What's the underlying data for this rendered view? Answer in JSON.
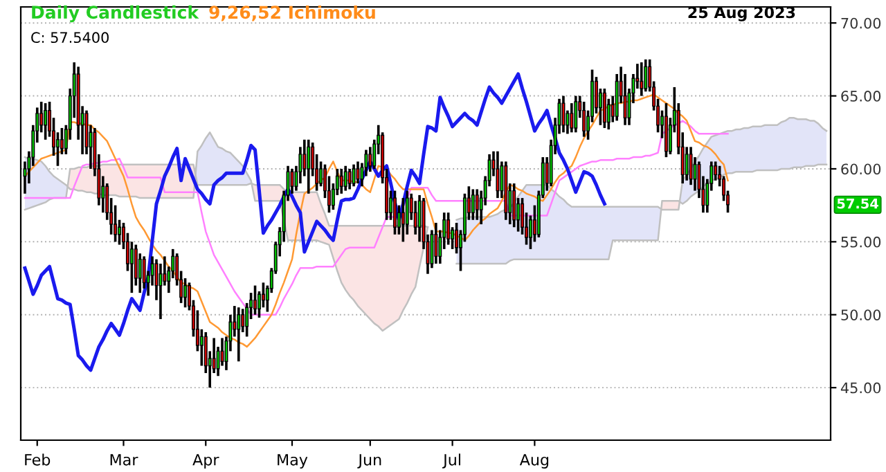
{
  "chart_data": {
    "type": "candlestick",
    "title": "Daily Candlestick",
    "subtitle": "9,26,52 Ichimoku",
    "annotations": [
      "C: 57.5400",
      "25 Aug 2023",
      "57.54"
    ],
    "categories": [
      null,
      null,
      null,
      "Feb",
      null,
      null,
      null,
      null,
      null,
      null,
      null,
      null,
      null,
      null,
      null,
      null,
      null,
      null,
      null,
      null,
      null,
      null,
      null,
      null,
      "Mar",
      null,
      null,
      null,
      null,
      null,
      null,
      null,
      null,
      null,
      null,
      null,
      null,
      null,
      null,
      null,
      null,
      null,
      null,
      null,
      "Apr",
      null,
      null,
      null,
      null,
      null,
      null,
      null,
      null,
      null,
      null,
      null,
      null,
      null,
      null,
      null,
      null,
      null,
      null,
      null,
      null,
      "May",
      null,
      null,
      null,
      null,
      null,
      null,
      null,
      null,
      null,
      null,
      null,
      null,
      null,
      null,
      null,
      null,
      null,
      null,
      "Jun",
      null,
      null,
      null,
      null,
      null,
      null,
      null,
      null,
      null,
      null,
      null,
      null,
      null,
      null,
      null,
      null,
      null,
      null,
      null,
      "Jul",
      null,
      null,
      null,
      null,
      null,
      null,
      null,
      null,
      null,
      null,
      null,
      null,
      null,
      null,
      null,
      null,
      null,
      null,
      null,
      "Aug",
      null,
      null,
      null,
      null,
      null,
      null,
      null,
      null,
      null,
      null,
      null,
      null,
      null,
      null,
      null,
      null,
      null,
      null,
      null,
      null,
      null,
      null,
      null,
      null,
      null,
      null,
      null,
      null,
      null,
      null,
      null,
      null,
      null,
      null,
      null,
      null,
      null,
      null,
      null,
      null,
      null,
      null,
      null,
      null,
      null,
      null,
      null,
      null,
      null,
      null,
      null,
      null,
      null,
      null,
      null,
      null,
      null,
      null,
      null,
      null,
      null,
      null,
      null,
      null,
      null,
      null,
      null,
      null,
      null,
      null,
      null
    ],
    "ohlc": [
      [
        59.5,
        60.5,
        58.3,
        60.0
      ],
      [
        60.0,
        61.2,
        59.0,
        60.8
      ],
      [
        60.8,
        63.0,
        60.2,
        62.6
      ],
      [
        62.6,
        64.2,
        61.8,
        63.8
      ],
      [
        63.8,
        64.6,
        62.5,
        63.0
      ],
      [
        63.0,
        64.5,
        62.0,
        64.0
      ],
      [
        64.0,
        64.6,
        62.2,
        62.6
      ],
      [
        62.6,
        63.5,
        60.9,
        61.5
      ],
      [
        61.5,
        62.5,
        60.2,
        62.0
      ],
      [
        62.0,
        62.8,
        61.0,
        61.4
      ],
      [
        61.4,
        63.0,
        61.0,
        62.7
      ],
      [
        62.7,
        65.5,
        62.0,
        65.0
      ],
      [
        65.0,
        67.3,
        63.5,
        66.5
      ],
      [
        66.5,
        67.0,
        62.0,
        63.0
      ],
      [
        63.0,
        64.3,
        61.0,
        63.8
      ],
      [
        63.8,
        64.0,
        61.0,
        61.5
      ],
      [
        61.5,
        63.0,
        60.0,
        62.5
      ],
      [
        62.5,
        62.8,
        59.5,
        60.0
      ],
      [
        60.0,
        61.0,
        57.5,
        58.0
      ],
      [
        58.0,
        59.5,
        57.0,
        58.8
      ],
      [
        58.8,
        59.0,
        56.5,
        57.0
      ],
      [
        57.0,
        58.0,
        55.5,
        56.2
      ],
      [
        56.2,
        57.5,
        55.0,
        55.5
      ],
      [
        55.5,
        56.5,
        54.8,
        56.0
      ],
      [
        56.0,
        56.3,
        54.5,
        55.0
      ],
      [
        55.0,
        55.6,
        53.0,
        53.5
      ],
      [
        53.5,
        55.0,
        51.5,
        54.5
      ],
      [
        54.5,
        54.8,
        52.0,
        52.5
      ],
      [
        52.5,
        54.2,
        51.5,
        53.8
      ],
      [
        53.8,
        54.0,
        51.8,
        52.2
      ],
      [
        52.2,
        53.0,
        51.3,
        52.7
      ],
      [
        52.7,
        54.0,
        52.0,
        53.5
      ],
      [
        53.5,
        53.8,
        51.0,
        52.0
      ],
      [
        52.0,
        53.5,
        49.7,
        52.8
      ],
      [
        52.8,
        54.0,
        52.0,
        52.3
      ],
      [
        52.3,
        53.3,
        51.5,
        53.0
      ],
      [
        53.0,
        54.5,
        52.5,
        54.0
      ],
      [
        54.0,
        54.2,
        52.0,
        52.4
      ],
      [
        52.4,
        53.0,
        50.8,
        51.2
      ],
      [
        51.2,
        52.5,
        50.5,
        52.0
      ],
      [
        52.0,
        52.2,
        50.3,
        50.6
      ],
      [
        50.6,
        51.0,
        48.5,
        49.0
      ],
      [
        49.0,
        50.3,
        47.5,
        47.9
      ],
      [
        47.9,
        49.0,
        46.5,
        48.5
      ],
      [
        48.5,
        48.8,
        46.0,
        46.5
      ],
      [
        46.5,
        47.5,
        45.0,
        47.0
      ],
      [
        47.0,
        48.4,
        46.0,
        46.3
      ],
      [
        46.3,
        47.8,
        45.8,
        47.5
      ],
      [
        47.5,
        48.4,
        46.5,
        46.8
      ],
      [
        46.8,
        48.5,
        46.2,
        48.2
      ],
      [
        48.2,
        50.0,
        47.5,
        49.5
      ],
      [
        49.5,
        50.6,
        48.5,
        49.0
      ],
      [
        49.0,
        50.5,
        46.8,
        50.0
      ],
      [
        50.0,
        50.4,
        48.8,
        49.2
      ],
      [
        49.2,
        50.8,
        48.5,
        50.5
      ],
      [
        50.5,
        51.5,
        49.7,
        51.0
      ],
      [
        51.0,
        52.0,
        50.0,
        50.4
      ],
      [
        50.4,
        51.6,
        49.8,
        51.4
      ],
      [
        51.4,
        52.2,
        50.5,
        51.0
      ],
      [
        51.0,
        52.0,
        50.2,
        51.8
      ],
      [
        51.8,
        53.2,
        51.5,
        53.0
      ],
      [
        53.0,
        55.0,
        52.8,
        54.8
      ],
      [
        54.8,
        56.0,
        54.0,
        55.7
      ],
      [
        55.7,
        58.5,
        55.0,
        58.2
      ],
      [
        58.2,
        60.2,
        57.8,
        59.8
      ],
      [
        59.8,
        60.0,
        58.3,
        58.8
      ],
      [
        58.8,
        60.2,
        58.5,
        59.8
      ],
      [
        59.8,
        61.5,
        59.0,
        61.0
      ],
      [
        61.0,
        62.0,
        59.5,
        60.0
      ],
      [
        60.0,
        62.0,
        58.3,
        61.5
      ],
      [
        61.5,
        61.8,
        59.5,
        60.0
      ],
      [
        60.0,
        61.0,
        58.5,
        59.0
      ],
      [
        59.0,
        60.5,
        58.8,
        60.0
      ],
      [
        60.0,
        60.3,
        58.0,
        58.5
      ],
      [
        58.5,
        59.5,
        57.0,
        57.5
      ],
      [
        57.5,
        59.0,
        57.2,
        58.6
      ],
      [
        58.6,
        60.0,
        58.2,
        59.5
      ],
      [
        59.5,
        60.0,
        58.3,
        58.8
      ],
      [
        58.8,
        60.2,
        58.5,
        59.8
      ],
      [
        59.8,
        60.0,
        58.6,
        59.0
      ],
      [
        59.0,
        60.3,
        58.8,
        60.0
      ],
      [
        60.0,
        60.5,
        59.0,
        59.3
      ],
      [
        59.3,
        60.4,
        58.8,
        60.1
      ],
      [
        60.1,
        61.3,
        59.5,
        61.0
      ],
      [
        61.0,
        61.5,
        59.8,
        60.2
      ],
      [
        60.2,
        62.0,
        60.0,
        61.7
      ],
      [
        61.7,
        63.0,
        61.0,
        62.3
      ],
      [
        62.3,
        62.5,
        59.0,
        59.4
      ],
      [
        59.4,
        60.0,
        56.5,
        57.0
      ],
      [
        57.0,
        58.5,
        56.5,
        58.0
      ],
      [
        58.0,
        58.5,
        55.5,
        56.0
      ],
      [
        56.0,
        57.5,
        55.5,
        57.0
      ],
      [
        57.0,
        58.0,
        55.0,
        56.2
      ],
      [
        56.2,
        58.5,
        55.5,
        58.0
      ],
      [
        58.0,
        58.3,
        56.5,
        57.0
      ],
      [
        57.0,
        57.8,
        55.5,
        56.0
      ],
      [
        56.0,
        58.2,
        55.0,
        57.8
      ],
      [
        57.8,
        58.0,
        54.5,
        55.0
      ],
      [
        55.0,
        55.5,
        52.8,
        53.5
      ],
      [
        53.5,
        55.8,
        53.2,
        55.5
      ],
      [
        55.5,
        56.3,
        53.5,
        54.0
      ],
      [
        54.0,
        55.8,
        53.5,
        55.3
      ],
      [
        55.3,
        57.0,
        54.5,
        56.5
      ],
      [
        56.5,
        57.0,
        54.8,
        55.2
      ],
      [
        55.2,
        56.0,
        54.5,
        55.8
      ],
      [
        55.8,
        56.3,
        54.2,
        54.6
      ],
      [
        54.6,
        55.8,
        53.0,
        55.5
      ],
      [
        55.5,
        58.3,
        55.0,
        58.0
      ],
      [
        58.0,
        58.8,
        56.5,
        57.0
      ],
      [
        57.0,
        58.6,
        56.5,
        58.2
      ],
      [
        58.2,
        58.6,
        56.5,
        57.2
      ],
      [
        57.2,
        58.5,
        56.2,
        58.0
      ],
      [
        58.0,
        59.5,
        57.5,
        59.2
      ],
      [
        59.2,
        61.0,
        58.8,
        60.6
      ],
      [
        60.6,
        61.2,
        59.5,
        60.0
      ],
      [
        60.0,
        61.2,
        58.0,
        58.5
      ],
      [
        58.5,
        60.5,
        58.0,
        60.2
      ],
      [
        60.2,
        60.5,
        56.5,
        57.0
      ],
      [
        57.0,
        59.0,
        56.2,
        58.5
      ],
      [
        58.5,
        59.0,
        56.0,
        56.5
      ],
      [
        56.5,
        58.0,
        55.7,
        57.6
      ],
      [
        57.6,
        58.0,
        55.5,
        56.0
      ],
      [
        56.0,
        57.0,
        54.8,
        55.3
      ],
      [
        55.3,
        56.8,
        54.5,
        56.5
      ],
      [
        56.5,
        57.5,
        55.0,
        55.5
      ],
      [
        55.5,
        58.5,
        55.3,
        58.2
      ],
      [
        58.2,
        60.8,
        58.0,
        60.4
      ],
      [
        60.4,
        60.8,
        58.5,
        59.0
      ],
      [
        59.0,
        62.0,
        58.8,
        61.6
      ],
      [
        61.6,
        63.5,
        61.0,
        63.0
      ],
      [
        63.0,
        64.8,
        62.4,
        64.5
      ],
      [
        64.5,
        65.0,
        62.5,
        63.0
      ],
      [
        63.0,
        64.0,
        62.4,
        63.8
      ],
      [
        63.8,
        64.5,
        62.5,
        62.8
      ],
      [
        62.8,
        65.0,
        62.5,
        64.6
      ],
      [
        64.6,
        65.0,
        63.5,
        64.0
      ],
      [
        64.0,
        64.6,
        62.2,
        62.6
      ],
      [
        62.6,
        64.0,
        62.0,
        63.6
      ],
      [
        63.6,
        66.8,
        63.2,
        66.0
      ],
      [
        66.0,
        66.3,
        63.8,
        64.2
      ],
      [
        64.2,
        65.5,
        63.0,
        65.2
      ],
      [
        65.2,
        65.5,
        62.8,
        63.2
      ],
      [
        63.2,
        64.8,
        62.7,
        64.4
      ],
      [
        64.4,
        65.0,
        63.2,
        63.6
      ],
      [
        63.6,
        66.5,
        63.3,
        66.0
      ],
      [
        66.0,
        67.0,
        64.5,
        65.0
      ],
      [
        65.0,
        66.5,
        63.0,
        63.5
      ],
      [
        63.5,
        65.5,
        63.0,
        65.2
      ],
      [
        65.2,
        66.5,
        64.5,
        66.2
      ],
      [
        66.2,
        67.2,
        65.5,
        66.0
      ],
      [
        66.0,
        67.3,
        65.0,
        65.5
      ],
      [
        65.5,
        67.5,
        65.3,
        67.0
      ],
      [
        67.0,
        67.5,
        65.3,
        65.6
      ],
      [
        65.6,
        66.0,
        64.0,
        64.3
      ],
      [
        64.3,
        64.8,
        62.5,
        63.0
      ],
      [
        63.0,
        64.0,
        62.1,
        63.6
      ],
      [
        63.6,
        64.5,
        60.8,
        61.2
      ],
      [
        61.2,
        63.5,
        61.0,
        63.0
      ],
      [
        63.0,
        65.6,
        62.5,
        64.0
      ],
      [
        64.0,
        64.5,
        61.0,
        61.5
      ],
      [
        61.5,
        62.5,
        59.0,
        59.6
      ],
      [
        59.6,
        61.5,
        59.2,
        61.0
      ],
      [
        61.0,
        61.5,
        58.9,
        59.3
      ],
      [
        59.3,
        60.8,
        58.5,
        60.3
      ],
      [
        60.3,
        60.5,
        58.0,
        58.6
      ],
      [
        58.6,
        59.5,
        57.0,
        57.5
      ],
      [
        57.5,
        59.3,
        57.0,
        59.0
      ],
      [
        59.0,
        60.5,
        58.5,
        60.2
      ],
      [
        60.2,
        60.5,
        59.2,
        59.6
      ],
      [
        59.6,
        60.2,
        58.8,
        59.3
      ],
      [
        59.3,
        59.5,
        57.8,
        58.2
      ],
      [
        58.2,
        58.5,
        57.0,
        57.54
      ],
      null,
      null,
      null,
      null,
      null,
      null,
      null,
      null,
      null,
      null,
      null,
      null,
      null,
      null,
      null,
      null,
      null,
      null,
      null,
      null,
      null,
      null,
      null,
      null
    ],
    "colors": [
      "#00cc00",
      "#00cc00",
      "#00cc00",
      "#00cc00",
      "#e00000",
      "#00cc00",
      "#e00000",
      "#e00000",
      "#00cc00",
      "#e00000",
      "#00cc00",
      "#00cc00",
      "#00cc00",
      "#e00000",
      "#00cc00",
      "#e00000",
      "#00cc00",
      "#e00000",
      "#e00000",
      "#00cc00",
      "#e00000",
      "#e00000",
      "#e00000",
      "#00cc00",
      "#e00000",
      "#e00000",
      "#00cc00",
      "#e00000",
      "#00cc00",
      "#e00000",
      "#00cc00",
      "#00cc00",
      "#e00000",
      "#00cc00",
      "#e00000",
      "#00cc00",
      "#00cc00",
      "#e00000",
      "#e00000",
      "#00cc00",
      "#e00000",
      "#e00000",
      "#e00000",
      "#00cc00",
      "#e00000",
      "#00cc00",
      "#e00000",
      "#00cc00",
      "#e00000",
      "#00cc00",
      "#00cc00",
      "#e00000",
      "#00cc00",
      "#e00000",
      "#00cc00",
      "#00cc00",
      "#e00000",
      "#00cc00",
      "#e00000",
      "#00cc00",
      "#00cc00",
      "#00cc00",
      "#00cc00",
      "#00cc00",
      "#00cc00",
      "#e00000",
      "#00cc00",
      "#00cc00",
      "#e00000",
      "#00cc00",
      "#e00000",
      "#e00000",
      "#00cc00",
      "#e00000",
      "#e00000",
      "#00cc00",
      "#00cc00",
      "#e00000",
      "#00cc00",
      "#e00000",
      "#00cc00",
      "#e00000",
      "#00cc00",
      "#00cc00",
      "#e00000",
      "#00cc00",
      "#00cc00",
      "#e00000",
      "#e00000",
      "#00cc00",
      "#e00000",
      "#00cc00",
      "#e00000",
      "#00cc00",
      "#e00000",
      "#e00000",
      "#00cc00",
      "#e00000",
      "#e00000",
      "#00cc00",
      "#e00000",
      "#00cc00",
      "#00cc00",
      "#e00000",
      "#00cc00",
      "#e00000",
      "#00cc00",
      "#00cc00",
      "#e00000",
      "#00cc00",
      "#e00000",
      "#00cc00",
      "#00cc00",
      "#00cc00",
      "#e00000",
      "#e00000",
      "#00cc00",
      "#e00000",
      "#00cc00",
      "#e00000",
      "#00cc00",
      "#e00000",
      "#e00000",
      "#00cc00",
      "#e00000",
      "#00cc00",
      "#00cc00",
      "#e00000",
      "#00cc00",
      "#00cc00",
      "#00cc00",
      "#e00000",
      "#00cc00",
      "#e00000",
      "#00cc00",
      "#e00000",
      "#e00000",
      "#00cc00",
      "#00cc00",
      "#e00000",
      "#00cc00",
      "#e00000",
      "#00cc00",
      "#e00000",
      "#00cc00",
      "#e00000",
      "#e00000",
      "#00cc00",
      "#00cc00",
      "#e00000",
      "#e00000",
      "#00cc00",
      "#e00000",
      "#e00000",
      "#e00000",
      "#00cc00",
      "#e00000",
      "#00cc00",
      "#00cc00",
      "#e00000",
      "#e00000",
      "#00cc00",
      "#e00000",
      "#00cc00",
      "#e00000",
      "#e00000",
      "#00cc00",
      "#00cc00",
      "#e00000",
      "#e00000",
      "#e00000",
      "#e00000",
      null,
      null,
      null,
      null,
      null,
      null,
      null,
      null,
      null,
      null,
      null,
      null,
      null,
      null,
      null,
      null,
      null,
      null,
      null,
      null,
      null,
      null,
      null,
      null
    ],
    "series": [
      {
        "type": "line",
        "color": "#c0c0c0",
        "values": [
          60.8,
          60.7,
          60.7,
          60.6,
          60.5,
          60.2,
          59.8,
          59.5,
          59.3,
          59.1,
          58.9,
          58.6,
          58.6,
          58.5,
          58.5,
          58.4,
          58.4,
          58.3,
          58.3,
          58.2,
          58.2,
          58.2,
          58.2,
          58.1,
          58.1,
          58.1,
          58.1,
          58.1,
          58.0,
          58.0,
          58.0,
          58.0,
          58.0,
          58.0,
          58.0,
          58.0,
          58.0,
          58.0,
          58.0,
          58.0,
          58.0,
          58.0,
          61.2,
          61.6,
          62.1,
          62.5,
          62.0,
          61.5,
          61.4,
          61.2,
          61.1,
          60.8,
          60.5,
          60.2,
          59.7,
          59.2,
          57.8,
          57.8,
          57.8,
          57.8,
          57.8,
          57.8,
          57.8,
          56.5,
          55.1,
          55.1,
          55.1,
          55.1,
          55.1,
          55.1,
          55.1,
          55.1,
          55.0,
          54.9,
          54.8,
          53.9,
          53.0,
          52.2,
          51.7,
          51.3,
          51.0,
          50.6,
          50.3,
          50.0,
          49.7,
          49.4,
          49.2,
          48.9,
          49.1,
          49.3,
          49.5,
          49.7,
          50.3,
          50.8,
          51.4,
          51.9,
          53.3,
          54.6,
          56.0,
          null,
          null,
          null,
          null,
          null,
          null,
          56.5,
          56.6,
          56.6,
          56.7,
          56.7,
          56.7,
          56.7,
          56.7,
          56.7,
          56.8,
          56.9,
          57.1,
          57.2,
          57.3,
          57.7,
          58.1,
          58.5,
          58.9,
          58.9,
          58.9,
          58.9,
          58.9,
          58.9,
          58.6,
          58.4,
          58.1,
          57.9,
          57.6,
          57.4,
          57.4,
          57.4,
          57.4,
          57.4,
          57.4,
          57.4,
          57.4,
          57.4,
          57.4,
          57.4,
          57.4,
          57.4,
          57.4,
          57.4,
          57.4,
          57.4,
          57.4,
          57.4,
          57.4,
          57.4,
          57.4,
          57.2,
          57.2,
          57.2,
          57.2,
          57.2,
          59.2,
          59.6,
          60.0,
          60.5,
          60.9,
          61.4,
          61.8,
          62.2,
          62.3,
          62.4,
          62.5,
          62.6,
          62.6,
          62.7,
          62.7,
          62.8,
          62.8,
          62.9,
          62.9,
          62.9,
          63.0,
          63.0,
          63.0,
          63.0,
          63.2,
          63.3,
          63.5,
          63.5,
          63.4,
          63.4,
          63.4,
          63.3,
          63.3,
          63.1,
          62.8,
          62.6
        ]
      },
      {
        "type": "line",
        "color": "#c0c0c0",
        "values": [
          57.2,
          57.3,
          57.4,
          57.5,
          57.6,
          57.7,
          57.9,
          58.0,
          58.0,
          58.0,
          58.0,
          60.0,
          60.0,
          60.1,
          60.1,
          60.1,
          60.2,
          60.2,
          60.2,
          60.3,
          60.3,
          60.3,
          60.3,
          60.3,
          60.3,
          60.3,
          60.3,
          60.3,
          60.3,
          60.3,
          60.3,
          60.3,
          60.3,
          60.3,
          60.3,
          60.3,
          60.3,
          60.3,
          60.3,
          60.3,
          60.3,
          60.3,
          58.9,
          58.9,
          58.9,
          58.9,
          58.9,
          58.9,
          58.9,
          58.9,
          58.9,
          58.9,
          58.9,
          58.9,
          58.9,
          59.0,
          58.9,
          58.9,
          58.9,
          58.9,
          58.9,
          58.9,
          58.9,
          58.6,
          58.4,
          58.4,
          58.4,
          58.4,
          58.4,
          58.4,
          58.4,
          58.4,
          57.6,
          56.9,
          56.1,
          56.1,
          56.1,
          56.1,
          56.1,
          56.1,
          56.1,
          56.1,
          56.1,
          56.1,
          56.1,
          56.1,
          56.1,
          56.1,
          56.1,
          56.1,
          56.1,
          56.1,
          56.1,
          56.1,
          56.1,
          56.1,
          56.1,
          56.1,
          56.0,
          null,
          null,
          null,
          null,
          null,
          null,
          53.5,
          53.5,
          53.5,
          53.5,
          53.5,
          53.5,
          53.5,
          53.5,
          53.5,
          53.5,
          53.5,
          53.5,
          53.5,
          53.7,
          53.8,
          53.8,
          53.8,
          53.8,
          53.8,
          53.8,
          53.8,
          53.8,
          53.8,
          53.8,
          53.8,
          53.8,
          53.8,
          53.8,
          53.8,
          53.8,
          53.8,
          53.8,
          53.8,
          53.8,
          53.8,
          53.8,
          53.8,
          53.8,
          55.1,
          55.1,
          55.1,
          55.1,
          55.1,
          55.1,
          55.1,
          55.1,
          55.1,
          55.1,
          55.1,
          55.1,
          57.8,
          57.8,
          57.8,
          57.8,
          57.8,
          57.6,
          57.8,
          58.1,
          58.3,
          58.5,
          58.8,
          59.0,
          59.2,
          59.3,
          59.4,
          59.6,
          59.7,
          59.7,
          59.8,
          59.8,
          59.8,
          59.8,
          59.8,
          59.9,
          59.9,
          59.9,
          59.9,
          59.9,
          59.9,
          60.0,
          60.0,
          60.0,
          60.1,
          60.1,
          60.1,
          60.2,
          60.2,
          60.2,
          60.3,
          60.3,
          60.3
        ]
      },
      {
        "type": "line",
        "color": "#ff80ff",
        "values": [
          58.0,
          58.0,
          58.0,
          58.0,
          58.0,
          58.0,
          58.0,
          58.0,
          58.0,
          58.0,
          58.0,
          58.0,
          58.8,
          59.5,
          60.2,
          60.3,
          60.3,
          60.4,
          60.4,
          60.5,
          60.5,
          60.6,
          60.6,
          60.7,
          60.1,
          59.4,
          59.4,
          59.4,
          59.4,
          59.4,
          59.4,
          59.4,
          59.4,
          59.4,
          58.4,
          58.4,
          58.4,
          58.4,
          58.4,
          58.4,
          58.4,
          58.4,
          58.4,
          57.0,
          55.7,
          54.9,
          54.1,
          53.6,
          53.1,
          52.6,
          52.1,
          51.6,
          51.2,
          50.8,
          50.4,
          50.0,
          50.0,
          50.0,
          50.0,
          50.0,
          50.0,
          50.0,
          50.5,
          51.1,
          51.6,
          52.1,
          52.7,
          53.2,
          53.2,
          53.2,
          53.2,
          53.3,
          53.3,
          53.3,
          53.3,
          53.3,
          53.7,
          54.1,
          54.5,
          54.6,
          54.6,
          54.6,
          54.6,
          54.6,
          54.6,
          54.6,
          55.3,
          56.0,
          56.7,
          56.7,
          56.7,
          56.7,
          57.4,
          58.0,
          58.7,
          58.7,
          58.7,
          58.7,
          58.7,
          58.2,
          57.8,
          57.8,
          57.8,
          57.8,
          57.8,
          57.8,
          57.8,
          57.8,
          57.8,
          57.8,
          57.8,
          57.8,
          57.8,
          57.8,
          57.8,
          57.8,
          57.8,
          57.8,
          56.8,
          56.8,
          56.8,
          56.8,
          56.8,
          56.8,
          56.8,
          56.8,
          56.8,
          56.8,
          57.6,
          58.4,
          59.2,
          59.4,
          59.6,
          59.8,
          60.0,
          60.2,
          60.3,
          60.4,
          60.5,
          60.5,
          60.6,
          60.6,
          60.6,
          60.6,
          60.7,
          60.7,
          60.7,
          60.7,
          60.8,
          60.8,
          60.8,
          60.9,
          60.9,
          61.0,
          61.1,
          62.4,
          62.6,
          62.8,
          63.0,
          63.1,
          63.3,
          63.1,
          62.9,
          62.6,
          62.4,
          62.4,
          62.4,
          62.4,
          62.4,
          62.4,
          62.4,
          62.4,
          null,
          null,
          null,
          null,
          null,
          null,
          null,
          null,
          null,
          null,
          null,
          null,
          null,
          null,
          null,
          null,
          null,
          null,
          null,
          null,
          null,
          null,
          null,
          null
        ]
      },
      {
        "type": "line",
        "color": "#ff9933",
        "values": [
          59.5,
          59.8,
          60.1,
          60.4,
          60.7,
          60.8,
          60.9,
          61.0,
          61.1,
          61.2,
          61.3,
          63.2,
          63.2,
          63.1,
          63.1,
          63.0,
          63.0,
          62.7,
          62.5,
          62.2,
          61.9,
          61.3,
          60.7,
          60.1,
          59.5,
          58.6,
          57.6,
          56.7,
          56.2,
          55.8,
          55.3,
          54.8,
          54.4,
          54.1,
          53.7,
          53.3,
          53.0,
          52.6,
          52.2,
          52.1,
          51.9,
          51.8,
          51.6,
          50.9,
          50.2,
          49.5,
          49.3,
          49.1,
          48.8,
          48.6,
          48.4,
          48.3,
          48.1,
          48.0,
          47.8,
          48.1,
          48.4,
          48.8,
          49.2,
          49.6,
          50.0,
          50.7,
          51.5,
          52.2,
          53.0,
          53.8,
          55.5,
          57.0,
          58.3,
          58.5,
          58.7,
          59.0,
          59.2,
          59.4,
          60.0,
          60.5,
          59.8,
          59.2,
          59.2,
          59.2,
          59.1,
          59.1,
          58.9,
          58.6,
          58.4,
          59.3,
          60.2,
          60.1,
          60.0,
          59.6,
          59.3,
          58.9,
          58.6,
          58.6,
          58.6,
          58.6,
          58.6,
          58.6,
          57.6,
          56.7,
          55.7,
          55.7,
          55.7,
          55.6,
          55.6,
          55.4,
          55.3,
          55.1,
          55.4,
          55.8,
          56.1,
          56.4,
          56.6,
          56.9,
          57.1,
          57.3,
          57.8,
          58.4,
          58.9,
          58.8,
          58.6,
          58.5,
          58.3,
          58.2,
          58.1,
          57.9,
          57.8,
          58.2,
          58.6,
          59.1,
          59.5,
          59.7,
          60.0,
          60.2,
          60.8,
          61.5,
          62.1,
          62.6,
          63.0,
          63.5,
          64.0,
          64.1,
          64.3,
          64.4,
          64.5,
          64.5,
          64.6,
          64.6,
          64.7,
          64.7,
          64.8,
          64.9,
          65.0,
          65.1,
          64.9,
          64.7,
          64.5,
          64.3,
          64.1,
          63.8,
          63.6,
          63.3,
          62.6,
          61.9,
          61.8,
          61.6,
          61.5,
          61.3,
          61.0,
          60.6,
          60.3,
          59.2,
          null,
          null,
          null,
          null,
          null,
          null,
          null,
          null,
          null,
          null,
          null,
          null,
          null,
          null,
          null,
          null,
          null,
          null,
          null,
          null,
          null,
          null,
          null,
          null
        ]
      },
      {
        "type": "line",
        "color": "#1a1aee",
        "values": [
          53.2,
          52.3,
          51.4,
          52.0,
          52.7,
          53.0,
          53.3,
          52.2,
          51.1,
          51.0,
          50.8,
          50.7,
          49.0,
          47.2,
          46.9,
          46.5,
          46.2,
          47.0,
          47.8,
          48.3,
          48.9,
          49.4,
          49.0,
          48.6,
          49.4,
          50.3,
          51.1,
          50.7,
          50.3,
          51.5,
          52.6,
          55.1,
          57.6,
          58.5,
          59.5,
          60.1,
          60.8,
          61.4,
          59.2,
          60.7,
          60.0,
          59.3,
          58.6,
          58.3,
          57.9,
          57.6,
          58.9,
          59.2,
          59.4,
          59.7,
          59.7,
          59.7,
          59.7,
          59.7,
          60.6,
          61.6,
          61.3,
          58.5,
          55.6,
          56.1,
          56.5,
          57.0,
          57.5,
          58.1,
          58.6,
          58.1,
          57.5,
          57.0,
          54.3,
          55.0,
          55.7,
          56.4,
          56.1,
          55.8,
          55.4,
          55.1,
          56.5,
          57.8,
          57.9,
          57.9,
          58.0,
          58.6,
          59.3,
          59.9,
          60.5,
          60.0,
          59.5,
          59.9,
          60.2,
          59.0,
          57.7,
          56.5,
          57.6,
          58.8,
          59.9,
          59.5,
          59.0,
          61.0,
          62.9,
          62.8,
          62.6,
          64.9,
          64.2,
          63.6,
          62.9,
          63.2,
          63.5,
          63.8,
          63.5,
          63.3,
          63.0,
          63.9,
          64.8,
          65.6,
          65.2,
          64.9,
          64.5,
          65.0,
          65.5,
          66.0,
          66.5,
          65.5,
          64.6,
          63.6,
          62.6,
          63.1,
          63.5,
          64.0,
          63.0,
          62.1,
          61.1,
          60.6,
          60.0,
          59.2,
          58.4,
          59.1,
          59.8,
          59.7,
          59.5,
          58.9,
          58.2,
          57.6,
          null,
          null,
          null,
          null,
          null,
          null,
          null,
          null,
          null,
          null,
          null,
          null,
          null,
          null,
          null,
          null,
          null,
          null,
          null,
          null,
          null,
          null,
          null,
          null,
          null,
          null,
          null,
          null,
          null,
          null,
          null,
          null,
          null,
          null,
          null,
          null,
          null,
          null,
          null,
          null,
          null,
          null,
          null,
          null,
          null,
          null,
          null,
          null,
          null,
          null,
          null,
          null,
          null,
          null
        ]
      }
    ],
    "ylim": [
      41.4,
      71.1
    ],
    "yticks": [
      {
        "value": 45,
        "label": "45.00"
      },
      {
        "value": 50,
        "label": "50.00"
      },
      {
        "value": 55,
        "label": "55.00"
      },
      {
        "value": 60,
        "label": "60.00"
      },
      {
        "value": 65,
        "label": "65.00"
      },
      {
        "value": 70,
        "label": "70.00"
      }
    ],
    "grid": "y"
  }
}
